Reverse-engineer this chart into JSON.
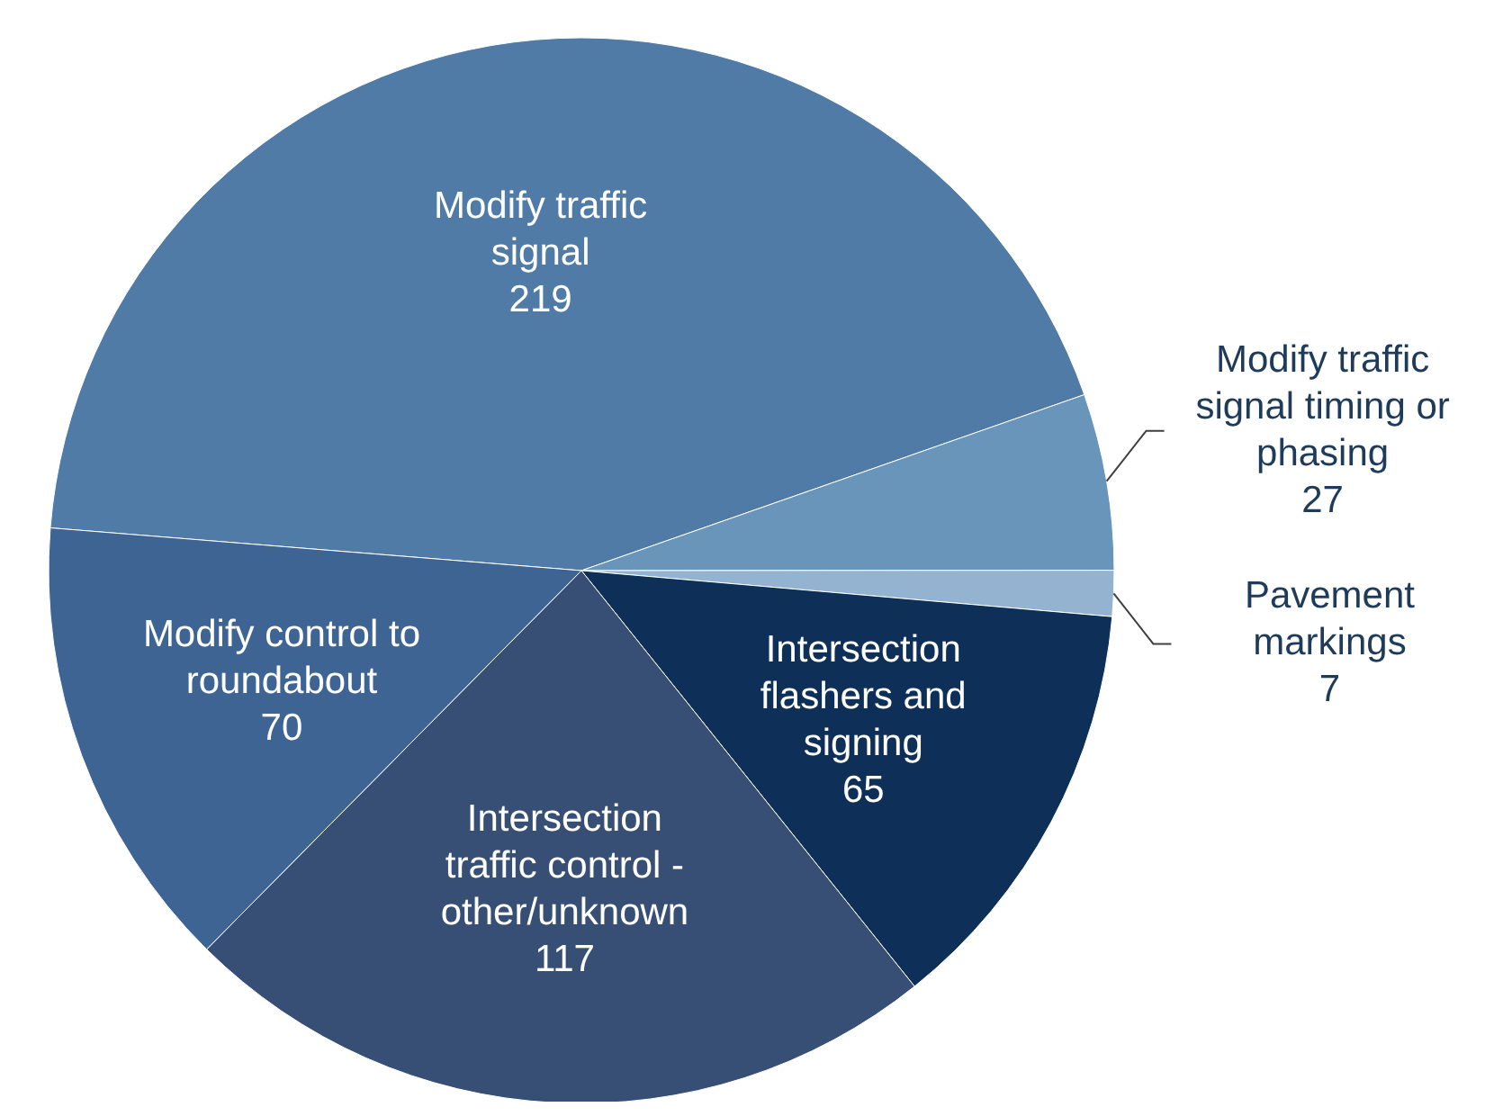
{
  "chart_data": {
    "type": "pie",
    "categories": [
      "Modify traffic signal",
      "Modify traffic signal timing or phasing",
      "Pavement markings",
      "Intersection flashers and signing",
      "Intersection traffic control - other/unknown",
      "Modify control to roundabout"
    ],
    "values": [
      219,
      27,
      7,
      65,
      117,
      70
    ],
    "colors": [
      "#4f7ba6",
      "#6a95ba",
      "#94b3d1",
      "#0e3058",
      "#384f75",
      "#3e6494"
    ],
    "data_labels": true,
    "legend": false
  }
}
